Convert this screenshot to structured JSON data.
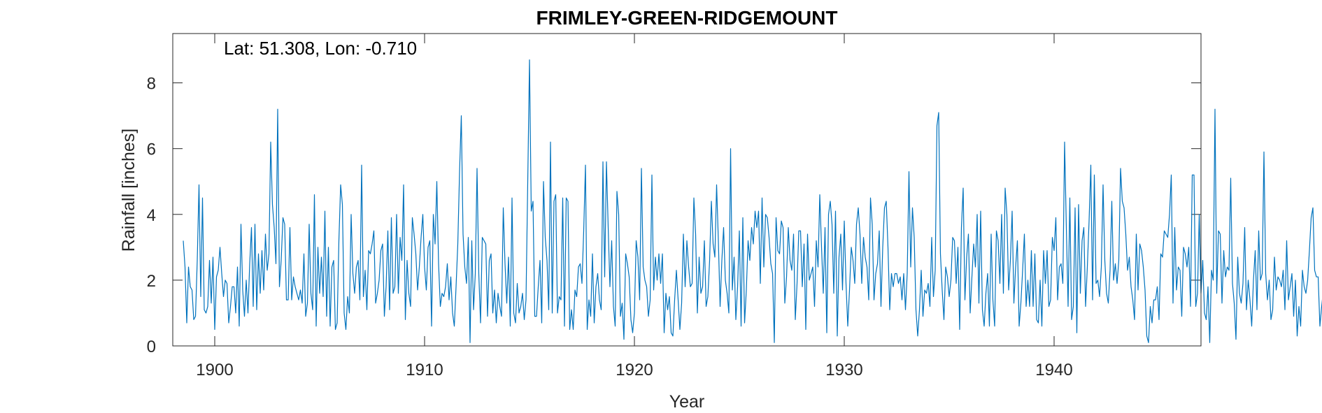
{
  "chart_data": {
    "type": "line",
    "title": "FRIMLEY-GREEN-RIDGEMOUNT",
    "annotation": "Lat: 51.308, Lon: -0.710",
    "xlabel": "Year",
    "ylabel": "Rainfall [inches]",
    "xlim": [
      1898.0,
      1947.0
    ],
    "ylim": [
      0,
      9.5
    ],
    "xticks": [
      1900,
      1910,
      1920,
      1930,
      1940
    ],
    "yticks": [
      0,
      2,
      4,
      6,
      8
    ],
    "grid": false,
    "line_color": "#0072BD",
    "series": [
      {
        "x_start": 1898.5,
        "x_step": 0.08333333,
        "values": [
          3.2,
          2.4,
          0.7,
          2.4,
          1.8,
          1.7,
          0.8,
          0.9,
          2.6,
          4.9,
          1.5,
          4.5,
          1.1,
          1.0,
          1.2,
          2.6,
          1.3,
          2.7,
          0.5,
          2.1,
          2.3,
          3.0,
          2.2,
          1.5,
          2.0,
          1.9,
          0.7,
          1.2,
          1.8,
          1.8,
          1.0,
          2.4,
          0.6,
          3.7,
          1.7,
          0.9,
          2.0,
          1.0,
          2.5,
          3.6,
          1.2,
          3.7,
          1.1,
          2.8,
          1.6,
          2.9,
          1.7,
          3.4,
          2.3,
          2.8,
          6.2,
          4.3,
          3.6,
          2.5,
          7.2,
          1.8,
          2.6,
          3.9,
          3.7,
          1.4,
          1.4,
          3.6,
          1.4,
          2.1,
          1.8,
          1.6,
          1.4,
          1.7,
          1.3,
          2.8,
          0.9,
          1.3,
          3.7,
          1.6,
          1.1,
          4.6,
          0.6,
          3.0,
          1.6,
          2.7,
          1.5,
          4.1,
          0.9,
          3.0,
          0.6,
          2.4,
          2.6,
          0.5,
          0.7,
          3.2,
          4.9,
          4.3,
          1.0,
          0.5,
          1.5,
          1.0,
          4.0,
          2.2,
          1.6,
          2.4,
          2.6,
          1.4,
          5.5,
          1.5,
          2.3,
          1.1,
          2.9,
          2.8,
          3.1,
          3.5,
          1.3,
          1.6,
          2.0,
          2.9,
          3.1,
          0.9,
          1.8,
          3.5,
          1.1,
          3.9,
          1.6,
          1.8,
          4.0,
          1.6,
          3.3,
          2.6,
          4.9,
          0.8,
          2.6,
          1.6,
          1.2,
          3.9,
          3.4,
          2.8,
          1.7,
          2.4,
          3.3,
          4.0,
          2.4,
          1.7,
          3.0,
          3.2,
          0.6,
          4.0,
          3.1,
          5.0,
          2.5,
          1.2,
          1.6,
          1.5,
          1.8,
          2.5,
          1.4,
          2.1,
          1.0,
          0.6,
          1.8,
          3.1,
          5.3,
          7.0,
          3.4,
          2.4,
          1.9,
          3.3,
          0.1,
          3.2,
          1.1,
          2.2,
          5.4,
          2.2,
          0.7,
          3.3,
          3.2,
          3.1,
          0.9,
          2.6,
          2.8,
          1.0,
          1.7,
          0.7,
          1.6,
          1.2,
          0.9,
          4.2,
          2.5,
          1.3,
          2.7,
          0.6,
          4.5,
          1.0,
          0.7,
          1.9,
          1.0,
          1.2,
          1.6,
          0.8,
          1.4,
          5.0,
          8.7,
          4.1,
          4.4,
          0.9,
          0.9,
          1.8,
          2.6,
          0.7,
          5.0,
          3.3,
          2.6,
          1.1,
          6.2,
          1.0,
          4.4,
          4.6,
          1.0,
          1.5,
          1.4,
          4.5,
          0.6,
          4.5,
          4.4,
          0.5,
          1.1,
          0.5,
          1.7,
          1.5,
          2.4,
          2.5,
          1.9,
          3.5,
          5.5,
          0.5,
          1.4,
          0.9,
          2.8,
          0.7,
          1.8,
          2.2,
          1.4,
          1.1,
          5.6,
          2.1,
          5.6,
          3.6,
          1.8,
          3.2,
          1.2,
          0.6,
          4.7,
          4.0,
          0.9,
          1.3,
          0.2,
          2.8,
          2.5,
          2.1,
          0.8,
          0.4,
          1.0,
          3.2,
          2.7,
          1.4,
          5.4,
          2.4,
          2.0,
          1.8,
          0.9,
          1.4,
          5.2,
          1.7,
          2.7,
          2.0,
          2.8,
          1.9,
          2.8,
          0.4,
          1.6,
          1.1,
          1.5,
          0.4,
          0.3,
          1.4,
          2.3,
          1.4,
          0.5,
          1.3,
          3.4,
          1.8,
          3.2,
          2.4,
          1.8,
          1.9,
          4.5,
          3.4,
          1.0,
          2.7,
          1.6,
          1.8,
          3.2,
          1.2,
          1.5,
          2.6,
          4.4,
          3.1,
          2.7,
          4.9,
          3.2,
          1.2,
          2.6,
          3.6,
          2.0,
          1.6,
          1.0,
          6.0,
          1.7,
          2.7,
          0.8,
          1.8,
          3.5,
          0.6,
          3.9,
          0.7,
          1.7,
          3.2,
          2.6,
          3.6,
          3.1,
          4.1,
          3.6,
          4.1,
          1.9,
          4.5,
          2.4,
          4.0,
          3.9,
          3.3,
          2.5,
          2.2,
          0.1,
          3.9,
          2.9,
          2.8,
          3.8,
          3.6,
          1.3,
          2.1,
          3.6,
          2.6,
          2.3,
          3.4,
          0.8,
          1.9,
          3.5,
          3.5,
          1.8,
          3.1,
          0.5,
          3.4,
          2.0,
          2.2,
          2.4,
          1.2,
          3.2,
          2.4,
          4.6,
          3.0,
          1.6,
          3.6,
          0.4,
          4.0,
          4.4,
          3.7,
          1.6,
          4.1,
          0.3,
          2.7,
          3.4,
          1.7,
          3.8,
          1.9,
          0.6,
          1.7,
          3.0,
          2.6,
          1.9,
          3.7,
          4.2,
          3.4,
          1.9,
          3.3,
          2.7,
          2.4,
          1.4,
          4.5,
          3.7,
          1.4,
          2.2,
          2.5,
          3.5,
          1.2,
          3.0,
          4.2,
          4.4,
          3.0,
          1.1,
          2.2,
          1.8,
          2.2,
          2.2,
          1.9,
          2.1,
          1.4,
          2.2,
          1.1,
          2.2,
          5.3,
          2.4,
          4.2,
          3.3,
          1.1,
          0.3,
          1.1,
          2.3,
          0.9,
          1.7,
          1.6,
          1.9,
          1.2,
          3.3,
          1.5,
          2.3,
          6.7,
          7.1,
          2.8,
          1.7,
          0.8,
          2.4,
          2.1,
          1.5,
          2.0,
          3.3,
          3.2,
          1.9,
          3.0,
          0.5,
          3.6,
          4.8,
          1.4,
          2.7,
          3.4,
          1.0,
          2.1,
          3.1,
          2.4,
          4.0,
          1.3,
          4.1,
          1.1,
          0.6,
          1.6,
          2.2,
          0.6,
          3.4,
          1.4,
          0.6,
          3.5,
          3.2,
          1.9,
          4.0,
          1.6,
          4.8,
          4.0,
          1.7,
          2.6,
          4.1,
          1.3,
          2.4,
          3.2,
          0.6,
          1.3,
          2.3,
          3.4,
          1.2,
          2.0,
          1.2,
          2.9,
          1.2,
          2.8,
          0.8,
          0.7,
          2.0,
          0.6,
          2.9,
          1.9,
          2.9,
          1.2,
          1.4,
          3.3,
          2.9,
          3.9,
          1.4,
          2.4,
          2.5,
          1.9,
          6.2,
          3.6,
          1.2,
          4.5,
          0.8,
          1.2,
          4.2,
          0.4,
          4.3,
          1.6,
          3.2,
          3.6,
          1.2,
          2.4,
          3.8,
          5.5,
          1.4,
          5.2,
          1.9,
          2.0,
          1.5,
          2.4,
          4.9,
          2.6,
          1.6,
          1.3,
          2.3,
          4.4,
          2.0,
          2.5,
          1.9,
          2.6,
          5.4,
          4.4,
          4.2,
          3.4,
          2.3,
          2.7,
          1.8,
          1.4,
          0.8,
          3.4,
          1.7,
          3.1,
          2.9,
          2.4,
          1.7,
          0.3,
          0.1,
          1.2,
          0.7,
          1.4,
          1.4,
          1.8,
          0.8,
          2.8,
          2.7,
          3.5,
          3.4,
          3.3,
          4.0,
          5.2,
          1.3,
          3.6,
          1.7,
          2.4,
          2.3,
          0.9,
          3.0,
          2.8,
          2.4,
          3.0,
          1.2,
          5.2,
          5.2,
          1.2,
          1.6,
          4.0,
          1.6,
          2.6,
          1.0,
          0.8,
          1.8,
          0.1,
          2.3,
          2.0,
          7.2,
          1.6,
          3.5,
          3.4,
          1.3,
          2.9,
          2.1,
          2.4,
          2.3,
          5.1,
          1.9,
          1.3,
          0.2,
          2.7,
          1.6,
          1.3,
          1.9,
          3.6,
          1.1,
          2.0,
          1.4,
          0.6,
          2.0,
          2.9,
          1.1,
          3.5,
          2.0,
          2.2,
          5.9,
          2.2,
          1.4,
          2.0,
          0.8,
          1.1,
          2.7,
          1.7,
          2.1,
          2.0,
          1.8,
          2.3,
          1.1,
          3.2,
          1.4,
          1.8,
          2.2,
          0.9,
          2.0,
          0.3,
          1.2,
          0.6,
          2.3,
          1.8,
          1.6,
          2.0,
          2.9,
          3.9,
          4.2,
          2.3,
          2.1,
          2.1,
          0.6,
          1.2,
          1.7
        ]
      }
    ]
  }
}
